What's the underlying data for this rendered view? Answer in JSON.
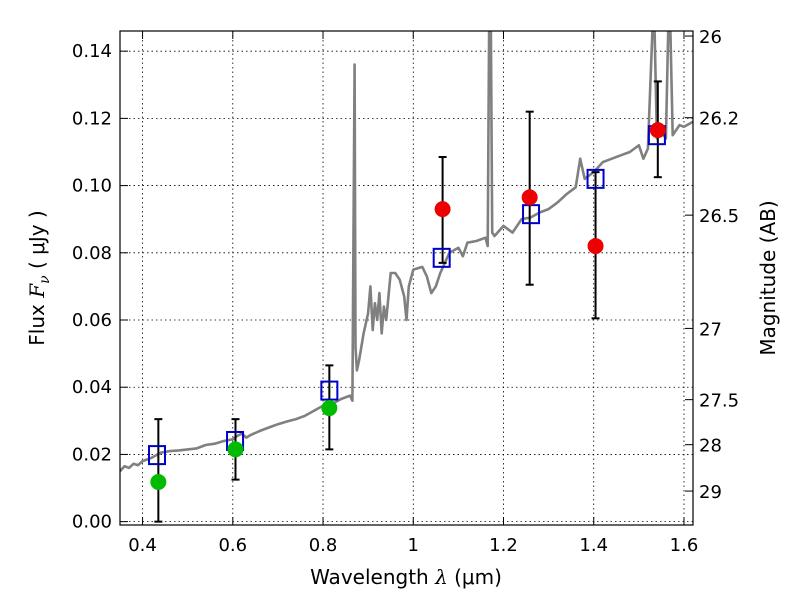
{
  "chart_data": {
    "type": "scatter",
    "xlabel": {
      "prefix": "Wavelength  ",
      "symbol": "λ",
      "unit": " (μm)"
    },
    "ylabel": {
      "prefix": "Flux  ",
      "symbol": "F",
      "subscript": "ν",
      "unit": "  ( μJy )"
    },
    "y2label": "Magnitude (AB)",
    "xlim": [
      0.35,
      1.62
    ],
    "ylim": [
      -0.001,
      0.146
    ],
    "grid": true,
    "x_ticks": [
      {
        "value": 0.4,
        "label": "0.4"
      },
      {
        "value": 0.6,
        "label": "0.6"
      },
      {
        "value": 0.8,
        "label": "0.8"
      },
      {
        "value": 1.0,
        "label": "1"
      },
      {
        "value": 1.2,
        "label": "1.2"
      },
      {
        "value": 1.4,
        "label": "1.4"
      },
      {
        "value": 1.6,
        "label": "1.6"
      }
    ],
    "y_ticks": [
      {
        "value": 0.0,
        "label": "0.00"
      },
      {
        "value": 0.02,
        "label": "0.02"
      },
      {
        "value": 0.04,
        "label": "0.04"
      },
      {
        "value": 0.06,
        "label": "0.06"
      },
      {
        "value": 0.08,
        "label": "0.08"
      },
      {
        "value": 0.1,
        "label": "0.10"
      },
      {
        "value": 0.12,
        "label": "0.12"
      },
      {
        "value": 0.14,
        "label": "0.14"
      }
    ],
    "y2_ticks": [
      {
        "flux": 0.1445,
        "label": "26"
      },
      {
        "flux": 0.1202,
        "label": "26.2"
      },
      {
        "flux": 0.0912,
        "label": "26.5"
      },
      {
        "flux": 0.0575,
        "label": "27"
      },
      {
        "flux": 0.0363,
        "label": "27.5"
      },
      {
        "flux": 0.0229,
        "label": "28"
      },
      {
        "flux": 0.0091,
        "label": "29"
      }
    ],
    "series": [
      {
        "kind": "model",
        "color": "#808080",
        "points": [
          [
            0.35,
            0.015
          ],
          [
            0.36,
            0.0165
          ],
          [
            0.37,
            0.016
          ],
          [
            0.38,
            0.0172
          ],
          [
            0.39,
            0.0168
          ],
          [
            0.4,
            0.018
          ],
          [
            0.42,
            0.019
          ],
          [
            0.44,
            0.0205
          ],
          [
            0.46,
            0.021
          ],
          [
            0.48,
            0.0212
          ],
          [
            0.5,
            0.0215
          ],
          [
            0.52,
            0.0218
          ],
          [
            0.54,
            0.0228
          ],
          [
            0.56,
            0.0232
          ],
          [
            0.58,
            0.024
          ],
          [
            0.6,
            0.0245
          ],
          [
            0.61,
            0.0255
          ],
          [
            0.62,
            0.0262
          ],
          [
            0.63,
            0.025
          ],
          [
            0.64,
            0.0258
          ],
          [
            0.66,
            0.027
          ],
          [
            0.68,
            0.028
          ],
          [
            0.7,
            0.029
          ],
          [
            0.72,
            0.0298
          ],
          [
            0.74,
            0.0305
          ],
          [
            0.76,
            0.0315
          ],
          [
            0.78,
            0.033
          ],
          [
            0.8,
            0.0345
          ],
          [
            0.82,
            0.035
          ],
          [
            0.84,
            0.0365
          ],
          [
            0.86,
            0.0375
          ],
          [
            0.865,
            0.036
          ],
          [
            0.87,
            0.136
          ],
          [
            0.872,
            0.052
          ],
          [
            0.875,
            0.045
          ],
          [
            0.88,
            0.048
          ],
          [
            0.89,
            0.056
          ],
          [
            0.9,
            0.062
          ],
          [
            0.905,
            0.07
          ],
          [
            0.91,
            0.057
          ],
          [
            0.915,
            0.065
          ],
          [
            0.92,
            0.06
          ],
          [
            0.925,
            0.068
          ],
          [
            0.93,
            0.056
          ],
          [
            0.935,
            0.064
          ],
          [
            0.94,
            0.06
          ],
          [
            0.95,
            0.074
          ],
          [
            0.96,
            0.074
          ],
          [
            0.97,
            0.072
          ],
          [
            0.98,
            0.067
          ],
          [
            0.985,
            0.06
          ],
          [
            0.99,
            0.07
          ],
          [
            1.0,
            0.075
          ],
          [
            1.02,
            0.0758
          ],
          [
            1.03,
            0.073
          ],
          [
            1.04,
            0.068
          ],
          [
            1.05,
            0.07
          ],
          [
            1.06,
            0.074
          ],
          [
            1.08,
            0.08
          ],
          [
            1.1,
            0.0815
          ],
          [
            1.11,
            0.079
          ],
          [
            1.12,
            0.083
          ],
          [
            1.14,
            0.0835
          ],
          [
            1.16,
            0.0845
          ],
          [
            1.165,
            0.082
          ],
          [
            1.168,
            0.146
          ],
          [
            1.172,
            0.146
          ],
          [
            1.175,
            0.086
          ],
          [
            1.18,
            0.085
          ],
          [
            1.2,
            0.088
          ],
          [
            1.22,
            0.086
          ],
          [
            1.24,
            0.09
          ],
          [
            1.26,
            0.0905
          ],
          [
            1.28,
            0.092
          ],
          [
            1.3,
            0.093
          ],
          [
            1.32,
            0.095
          ],
          [
            1.34,
            0.0975
          ],
          [
            1.36,
            0.0995
          ],
          [
            1.37,
            0.108
          ],
          [
            1.38,
            0.102
          ],
          [
            1.4,
            0.104
          ],
          [
            1.42,
            0.107
          ],
          [
            1.44,
            0.108
          ],
          [
            1.46,
            0.109
          ],
          [
            1.48,
            0.11
          ],
          [
            1.5,
            0.112
          ],
          [
            1.51,
            0.108
          ],
          [
            1.52,
            0.111
          ],
          [
            1.53,
            0.146
          ],
          [
            1.535,
            0.146
          ],
          [
            1.54,
            0.114
          ],
          [
            1.55,
            0.116
          ],
          [
            1.56,
            0.114
          ],
          [
            1.565,
            0.146
          ],
          [
            1.57,
            0.146
          ],
          [
            1.575,
            0.115
          ],
          [
            1.58,
            0.116
          ],
          [
            1.59,
            0.118
          ],
          [
            1.6,
            0.1175
          ],
          [
            1.62,
            0.119
          ]
        ]
      },
      {
        "kind": "model-photometry",
        "marker": "open-square",
        "color": "#0000cc",
        "points": [
          [
            0.432,
            0.0198
          ],
          [
            0.605,
            0.024
          ],
          [
            0.814,
            0.039
          ],
          [
            1.063,
            0.0785
          ],
          [
            1.261,
            0.0915
          ],
          [
            1.404,
            0.102
          ],
          [
            1.54,
            0.115
          ]
        ]
      },
      {
        "kind": "observed",
        "marker": "filled-circle",
        "color": "#00bb00",
        "points": [
          {
            "x": 0.435,
            "y": 0.0118,
            "err_low": 0.0,
            "err_high": 0.0305
          },
          {
            "x": 0.606,
            "y": 0.0215,
            "err_low": 0.0125,
            "err_high": 0.0305
          },
          {
            "x": 0.814,
            "y": 0.0338,
            "err_low": 0.0215,
            "err_high": 0.0465
          }
        ]
      },
      {
        "kind": "observed",
        "marker": "filled-circle",
        "color": "#ee0000",
        "points": [
          {
            "x": 1.065,
            "y": 0.093,
            "err_low": 0.077,
            "err_high": 0.1085
          },
          {
            "x": 1.258,
            "y": 0.0965,
            "err_low": 0.0705,
            "err_high": 0.122
          },
          {
            "x": 1.404,
            "y": 0.082,
            "err_low": 0.0605,
            "err_high": 0.104
          },
          {
            "x": 1.542,
            "y": 0.1165,
            "err_low": 0.1025,
            "err_high": 0.131
          }
        ]
      }
    ]
  }
}
